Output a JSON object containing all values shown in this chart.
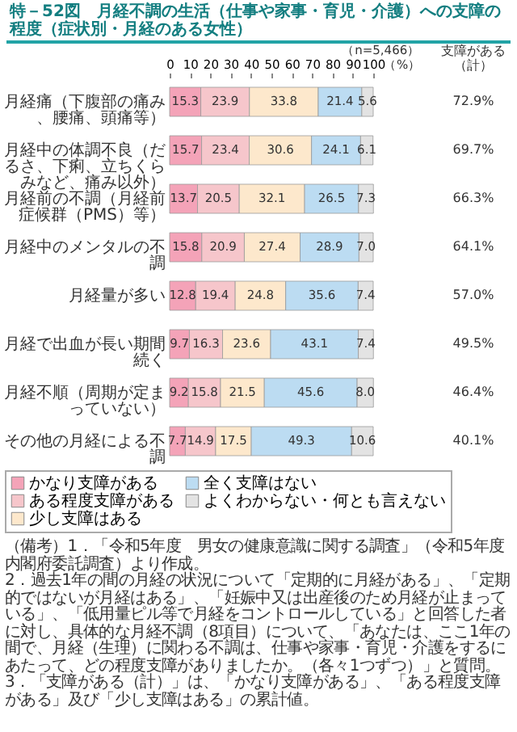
{
  "chart_data": {
    "type": "bar",
    "orientation": "horizontal",
    "stacked": true,
    "title": "特－52図　月経不調の生活（仕事や家事・育児・介護）への支障の程度（症状別・月経のある女性）",
    "subtitle": "（n=5,466）",
    "y2label": "支障がある（計）",
    "categories": [
      "月経痛（下腹部の痛み、腰痛、頭痛等）",
      "月経中の体調不良（だるさ、下痢、立ちくらみなど、痛み以外）",
      "月経前の不調（月経前症候群（PMS）等）",
      "月経中のメンタルの不調",
      "月経量が多い",
      "月経で出血が長い期間続く",
      "月経不順（周期が定まっていない）",
      "その他の月経による不調"
    ],
    "series": [
      {
        "name": "かなり支障がある",
        "color": "#f4a3b8",
        "values": [
          15.3,
          15.7,
          13.7,
          15.8,
          12.8,
          9.7,
          9.2,
          7.7
        ],
        "value_labels": [
          "15.3",
          "15.7",
          "13.7",
          "15.8",
          "12.8",
          "9.7",
          "9.2",
          "7.7"
        ]
      },
      {
        "name": "ある程度支障がある",
        "color": "#f6c6cb",
        "values": [
          23.9,
          23.4,
          20.5,
          20.9,
          19.4,
          16.3,
          15.8,
          14.9
        ],
        "value_labels": [
          "23.9",
          "23.4",
          "20.5",
          "20.9",
          "19.4",
          "16.3",
          "15.8",
          "14.9"
        ]
      },
      {
        "name": "少し支障はある",
        "color": "#fde8cc",
        "values": [
          33.8,
          30.6,
          32.1,
          27.4,
          24.8,
          23.6,
          21.5,
          17.5
        ],
        "value_labels": [
          "33.8",
          "30.6",
          "32.1",
          "27.4",
          "24.8",
          "23.6",
          "21.5",
          "17.5"
        ]
      },
      {
        "name": "全く支障はない",
        "color": "#bcdcf2",
        "values": [
          21.4,
          24.1,
          26.5,
          28.9,
          35.6,
          43.1,
          45.6,
          49.3
        ],
        "value_labels": [
          "21.4",
          "24.1",
          "26.5",
          "28.9",
          "35.6",
          "43.1",
          "45.6",
          "49.3"
        ]
      },
      {
        "name": "よくわからない・何とも言えない",
        "color": "#e3e3e3",
        "values": [
          5.6,
          6.1,
          7.3,
          7.0,
          7.4,
          7.4,
          8.0,
          10.6
        ],
        "value_labels": [
          "5.6",
          "6.1",
          "7.3",
          "7.0",
          "7.4",
          "7.4",
          "8.0",
          "10.6"
        ]
      }
    ],
    "xlim": [
      0,
      100
    ],
    "xticks": [
      0,
      10,
      20,
      30,
      40,
      50,
      60,
      70,
      80,
      90,
      100
    ],
    "xlabel": "（%）",
    "y2_categories": [
      "72.9%",
      "69.7%",
      "66.3%",
      "64.1%",
      "57.0%",
      "49.5%",
      "46.4%",
      "40.1%"
    ],
    "legend": "bottom",
    "annotations": [
      "（備考）1．「令和5年度　男女の健康意識に関する調査」（令和5年度内閣府委託調査）より作成。",
      "2．過去1年の間の月経の状況について「定期的に月経がある」、「定期的ではないが月経はある」、「妊娠中又は出産後のため月経が止まっている」、「低用量ピル等で月経をコントロールしている」と回答した者に対し、具体的な月経不調（8項目）について、「あなたは、ここ1年の間で、月経（生理）に関わる不調は、仕事や家事・育児・介護をするにあたって、どの程度支障がありましたか。（各々1つずつ）」と質問。",
      "3．「支障がある（計）」は、「かなり支障がある」、「ある程度支障がある」及び「少し支障はある」の累計値。"
    ]
  }
}
